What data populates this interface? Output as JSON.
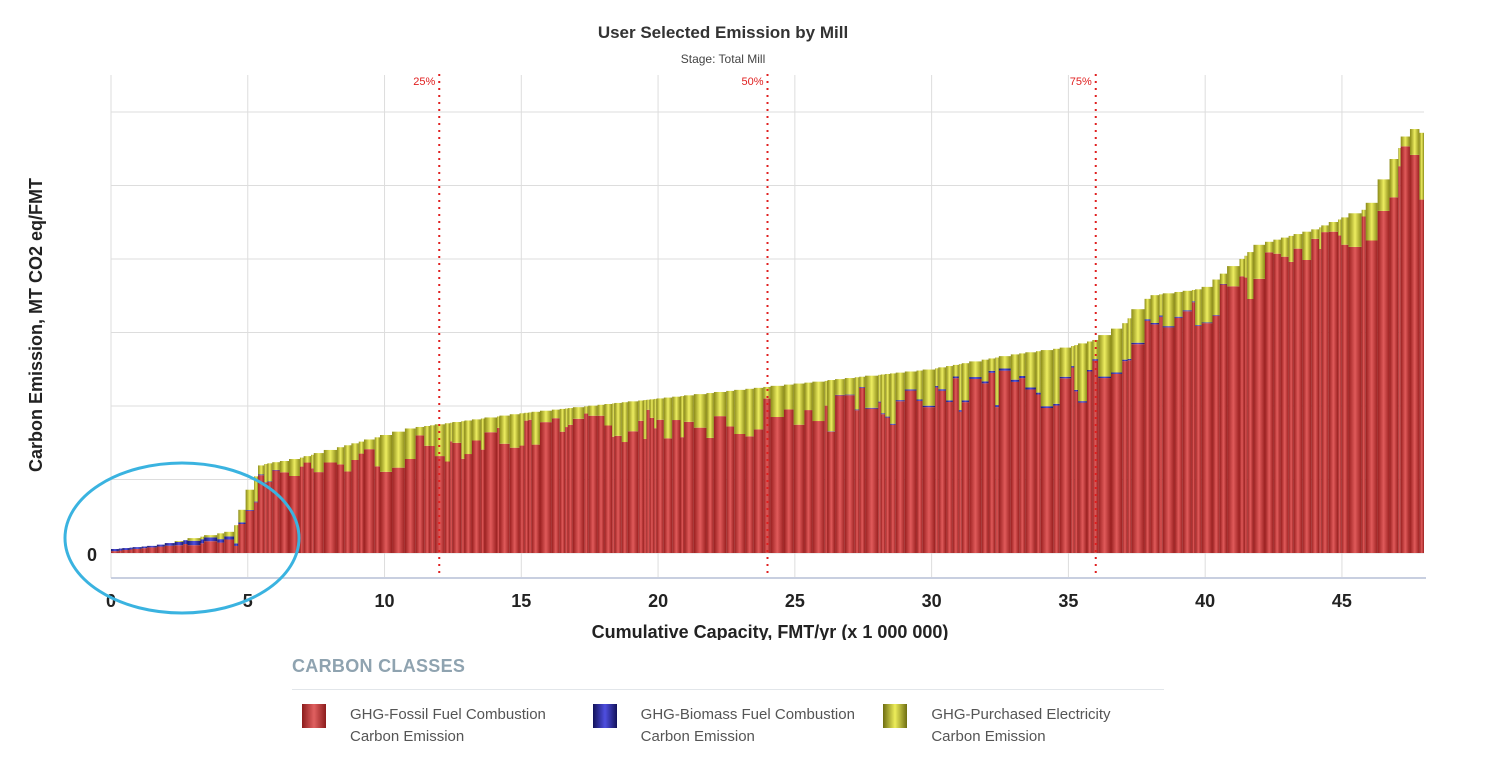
{
  "chart_data": {
    "type": "bar",
    "title": "User Selected Emission by Mill",
    "subtitle": "Stage: Total Mill",
    "xlabel": "Cumulative Capacity, FMT/yr (x 1 000 000)",
    "ylabel": "Carbon Emission, MT CO2 eq/FMT",
    "x_ticks": [
      "0",
      "5",
      "10",
      "15",
      "20",
      "25",
      "30",
      "35",
      "40",
      "45"
    ],
    "y_ticks": [
      "0"
    ],
    "xlim": [
      0,
      48
    ],
    "ylim": [
      0,
      6
    ],
    "quartile_lines": [
      {
        "label": "25%",
        "x": 12
      },
      {
        "label": "50%",
        "x": 24
      },
      {
        "label": "75%",
        "x": 36
      }
    ],
    "series": [
      {
        "name": "GHG-Fossil Fuel Combustion Carbon Emission",
        "color": "#c83a3a"
      },
      {
        "name": "GHG-Biomass Fuel Combustion Carbon Emission",
        "color": "#3434c0"
      },
      {
        "name": "GHG-Purchased Electricity Carbon Emission",
        "color": "#caca3a"
      }
    ],
    "mill_envelope_approx": {
      "x": [
        0,
        1.6,
        3,
        4.5,
        5,
        5.5,
        7,
        9,
        11,
        13,
        15,
        20,
        25,
        30,
        33,
        35,
        36,
        37,
        38,
        40,
        42,
        44,
        46,
        47.5,
        48
      ],
      "total": [
        0.05,
        0.1,
        0.2,
        0.3,
        0.8,
        1.2,
        1.3,
        1.5,
        1.7,
        1.8,
        1.9,
        2.1,
        2.3,
        2.5,
        2.7,
        2.8,
        2.9,
        3.1,
        3.5,
        3.6,
        4.2,
        4.4,
        4.7,
        5.8,
        5.7
      ],
      "electricity": [
        0,
        0,
        0.02,
        0.1,
        0.4,
        0.15,
        0.2,
        0.25,
        0.35,
        0.3,
        0.3,
        0.35,
        0.4,
        0.45,
        0.5,
        0.45,
        0.5,
        0.45,
        0.35,
        0.3,
        0.4,
        0.3,
        0.3,
        0.35,
        0.6
      ],
      "biomass": [
        0.03,
        0.02,
        0.06,
        0.04,
        0.01,
        0.01,
        0,
        0,
        0,
        0,
        0,
        0,
        0,
        0.02,
        0.03,
        0.02,
        0.02,
        0.02,
        0.02,
        0.01,
        0,
        0,
        0,
        0,
        0
      ]
    },
    "annotation": "circle highlighting low-emission mills near origin"
  },
  "legend": {
    "title": "CARBON CLASSES",
    "items": [
      {
        "line1": "GHG-Fossil Fuel Combustion",
        "line2": "Carbon Emission"
      },
      {
        "line1": "GHG-Biomass Fuel Combustion",
        "line2": "Carbon Emission"
      },
      {
        "line1": "GHG-Purchased Electricity",
        "line2": "Carbon Emission"
      }
    ]
  }
}
